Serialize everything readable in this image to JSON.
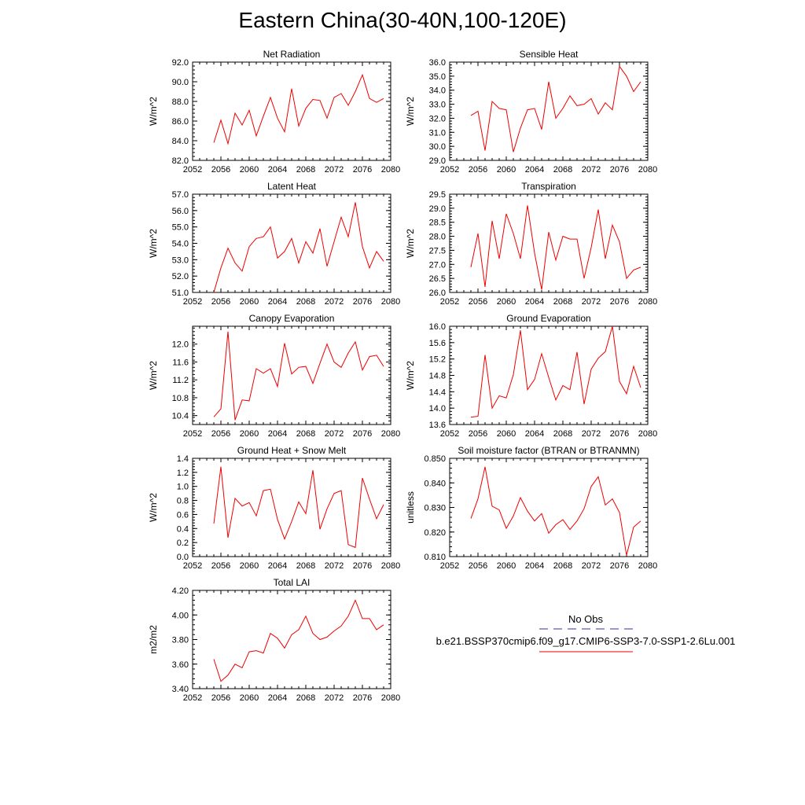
{
  "title": "Eastern China(30-40N,100-120E)",
  "colors": {
    "series": "#ee0000",
    "obs": "#3030a0",
    "axis": "#000000"
  },
  "legend": {
    "entries": [
      {
        "label": "No Obs",
        "style": "dashed",
        "color": "#3030a0"
      },
      {
        "label": "b.e21.BSSP370cmip6.f09_g17.CMIP6-SSP3-7.0-SSP1-2.6Lu.001",
        "style": "solid",
        "color": "#ee0000"
      }
    ]
  },
  "chart_data": [
    {
      "type": "line",
      "title": "Net Radiation",
      "ylabel": "W/m^2",
      "xlim": [
        2052,
        2080
      ],
      "xticks": [
        2052,
        2056,
        2060,
        2064,
        2068,
        2072,
        2076,
        2080
      ],
      "ylim": [
        82,
        92
      ],
      "yticks": [
        82,
        84,
        86,
        88,
        90,
        92
      ],
      "ydecimals": 1,
      "x": [
        2055,
        2056,
        2057,
        2058,
        2059,
        2060,
        2061,
        2062,
        2063,
        2064,
        2065,
        2066,
        2067,
        2068,
        2069,
        2070,
        2071,
        2072,
        2073,
        2074,
        2075,
        2076,
        2077,
        2078,
        2079
      ],
      "series": [
        {
          "values": [
            83.8,
            86.1,
            83.7,
            86.8,
            85.6,
            87.1,
            84.5,
            86.5,
            88.4,
            86.3,
            84.9,
            89.3,
            85.5,
            87.3,
            88.2,
            88.1,
            86.3,
            88.4,
            88.8,
            87.6,
            89.0,
            90.7,
            88.3,
            87.9,
            88.3
          ]
        }
      ]
    },
    {
      "type": "line",
      "title": "Sensible Heat",
      "ylabel": "W/m^2",
      "xlim": [
        2052,
        2080
      ],
      "xticks": [
        2052,
        2056,
        2060,
        2064,
        2068,
        2072,
        2076,
        2080
      ],
      "ylim": [
        29,
        36
      ],
      "yticks": [
        29,
        30,
        31,
        32,
        33,
        34,
        35,
        36
      ],
      "ydecimals": 1,
      "x": [
        2055,
        2056,
        2057,
        2058,
        2059,
        2060,
        2061,
        2062,
        2063,
        2064,
        2065,
        2066,
        2067,
        2068,
        2069,
        2070,
        2071,
        2072,
        2073,
        2074,
        2075,
        2076,
        2077,
        2078,
        2079
      ],
      "series": [
        {
          "values": [
            32.2,
            32.5,
            29.7,
            33.2,
            32.7,
            32.6,
            29.6,
            31.3,
            32.6,
            32.7,
            31.2,
            34.6,
            32.0,
            32.7,
            33.6,
            32.9,
            33.0,
            33.4,
            32.3,
            33.1,
            32.6,
            35.7,
            35.0,
            33.9,
            34.6
          ]
        }
      ]
    },
    {
      "type": "line",
      "title": "Latent Heat",
      "ylabel": "W/m^2",
      "xlim": [
        2052,
        2080
      ],
      "xticks": [
        2052,
        2056,
        2060,
        2064,
        2068,
        2072,
        2076,
        2080
      ],
      "ylim": [
        51,
        57
      ],
      "yticks": [
        51,
        52,
        53,
        54,
        55,
        56,
        57
      ],
      "ydecimals": 1,
      "x": [
        2055,
        2056,
        2057,
        2058,
        2059,
        2060,
        2061,
        2062,
        2063,
        2064,
        2065,
        2066,
        2067,
        2068,
        2069,
        2070,
        2071,
        2072,
        2073,
        2074,
        2075,
        2076,
        2077,
        2078,
        2079
      ],
      "series": [
        {
          "values": [
            51.0,
            52.5,
            53.7,
            52.8,
            52.3,
            53.8,
            54.3,
            54.4,
            55.0,
            53.1,
            53.5,
            54.3,
            52.8,
            54.1,
            53.4,
            54.9,
            52.6,
            54.1,
            55.6,
            54.4,
            56.5,
            53.8,
            52.5,
            53.5,
            52.9
          ]
        }
      ]
    },
    {
      "type": "line",
      "title": "Transpiration",
      "ylabel": "W/m^2",
      "xlim": [
        2052,
        2080
      ],
      "xticks": [
        2052,
        2056,
        2060,
        2064,
        2068,
        2072,
        2076,
        2080
      ],
      "ylim": [
        26,
        29.5
      ],
      "yticks": [
        26,
        26.5,
        27,
        27.5,
        28,
        28.5,
        29,
        29.5
      ],
      "ydecimals": 1,
      "x": [
        2055,
        2056,
        2057,
        2058,
        2059,
        2060,
        2061,
        2062,
        2063,
        2064,
        2065,
        2066,
        2067,
        2068,
        2069,
        2070,
        2071,
        2072,
        2073,
        2074,
        2075,
        2076,
        2077,
        2078,
        2079
      ],
      "series": [
        {
          "values": [
            26.9,
            28.1,
            26.2,
            28.55,
            27.2,
            28.8,
            28.1,
            27.2,
            29.1,
            27.4,
            26.1,
            28.15,
            27.15,
            28.0,
            27.9,
            27.9,
            26.5,
            27.6,
            28.95,
            27.2,
            28.4,
            27.8,
            26.5,
            26.8,
            26.9
          ]
        }
      ]
    },
    {
      "type": "line",
      "title": "Canopy Evaporation",
      "ylabel": "W/m^2",
      "xlim": [
        2052,
        2080
      ],
      "xticks": [
        2052,
        2056,
        2060,
        2064,
        2068,
        2072,
        2076,
        2080
      ],
      "ylim": [
        10.2,
        12.4
      ],
      "yticks": [
        10.4,
        10.8,
        11.2,
        11.6,
        12.0
      ],
      "ydecimals": 1,
      "x": [
        2055,
        2056,
        2057,
        2058,
        2059,
        2060,
        2061,
        2062,
        2063,
        2064,
        2065,
        2066,
        2067,
        2068,
        2069,
        2070,
        2071,
        2072,
        2073,
        2074,
        2075,
        2076,
        2077,
        2078,
        2079
      ],
      "series": [
        {
          "values": [
            10.37,
            10.55,
            12.28,
            10.3,
            10.75,
            10.73,
            11.45,
            11.35,
            11.45,
            11.05,
            12.02,
            11.33,
            11.48,
            11.5,
            11.12,
            11.57,
            12.0,
            11.6,
            11.48,
            11.8,
            12.05,
            11.42,
            11.72,
            11.75,
            11.5
          ]
        }
      ]
    },
    {
      "type": "line",
      "title": "Ground Evaporation",
      "ylabel": "W/m^2",
      "xlim": [
        2052,
        2080
      ],
      "xticks": [
        2052,
        2056,
        2060,
        2064,
        2068,
        2072,
        2076,
        2080
      ],
      "ylim": [
        13.6,
        16.0
      ],
      "yticks": [
        13.6,
        14.0,
        14.4,
        14.8,
        15.2,
        15.6,
        16.0
      ],
      "ydecimals": 1,
      "x": [
        2055,
        2056,
        2057,
        2058,
        2059,
        2060,
        2061,
        2062,
        2063,
        2064,
        2065,
        2066,
        2067,
        2068,
        2069,
        2070,
        2071,
        2072,
        2073,
        2074,
        2075,
        2076,
        2077,
        2078,
        2079
      ],
      "series": [
        {
          "values": [
            13.78,
            13.8,
            15.3,
            14.0,
            14.3,
            14.25,
            14.82,
            15.9,
            14.45,
            14.7,
            15.33,
            14.75,
            14.2,
            14.55,
            14.45,
            15.37,
            14.1,
            14.95,
            15.22,
            15.38,
            16.0,
            14.65,
            14.35,
            15.02,
            14.5
          ]
        }
      ]
    },
    {
      "type": "line",
      "title": "Ground Heat + Snow Melt",
      "ylabel": "W/m^2",
      "xlim": [
        2052,
        2080
      ],
      "xticks": [
        2052,
        2056,
        2060,
        2064,
        2068,
        2072,
        2076,
        2080
      ],
      "ylim": [
        0,
        1.4
      ],
      "yticks": [
        0,
        0.2,
        0.4,
        0.6,
        0.8,
        1.0,
        1.2,
        1.4
      ],
      "ydecimals": 1,
      "x": [
        2055,
        2056,
        2057,
        2058,
        2059,
        2060,
        2061,
        2062,
        2063,
        2064,
        2065,
        2066,
        2067,
        2068,
        2069,
        2070,
        2071,
        2072,
        2073,
        2074,
        2075,
        2076,
        2077,
        2078,
        2079
      ],
      "series": [
        {
          "values": [
            0.47,
            1.28,
            0.27,
            0.83,
            0.72,
            0.77,
            0.58,
            0.94,
            0.96,
            0.53,
            0.25,
            0.5,
            0.78,
            0.61,
            1.23,
            0.39,
            0.68,
            0.9,
            0.94,
            0.17,
            0.13,
            1.12,
            0.82,
            0.54,
            0.74
          ]
        }
      ]
    },
    {
      "type": "line",
      "title": "Soil moisture factor (BTRAN or BTRANMN)",
      "ylabel": "unitless",
      "xlim": [
        2052,
        2080
      ],
      "xticks": [
        2052,
        2056,
        2060,
        2064,
        2068,
        2072,
        2076,
        2080
      ],
      "ylim": [
        0.81,
        0.85
      ],
      "yticks": [
        0.81,
        0.82,
        0.83,
        0.84,
        0.85
      ],
      "ydecimals": 3,
      "x": [
        2055,
        2056,
        2057,
        2058,
        2059,
        2060,
        2061,
        2062,
        2063,
        2064,
        2065,
        2066,
        2067,
        2068,
        2069,
        2070,
        2071,
        2072,
        2073,
        2074,
        2075,
        2076,
        2077,
        2078,
        2079
      ],
      "series": [
        {
          "values": [
            0.8255,
            0.8335,
            0.8465,
            0.8305,
            0.829,
            0.8215,
            0.8265,
            0.834,
            0.8285,
            0.8245,
            0.8275,
            0.8195,
            0.823,
            0.825,
            0.821,
            0.8245,
            0.8295,
            0.8385,
            0.8425,
            0.831,
            0.8335,
            0.828,
            0.8105,
            0.822,
            0.8245
          ]
        }
      ]
    },
    {
      "type": "line",
      "title": "Total LAI",
      "ylabel": "m2/m2",
      "xlim": [
        2052,
        2080
      ],
      "xticks": [
        2052,
        2056,
        2060,
        2064,
        2068,
        2072,
        2076,
        2080
      ],
      "ylim": [
        3.4,
        4.2
      ],
      "yticks": [
        3.4,
        3.6,
        3.8,
        4.0,
        4.2
      ],
      "ydecimals": 2,
      "x": [
        2055,
        2056,
        2057,
        2058,
        2059,
        2060,
        2061,
        2062,
        2063,
        2064,
        2065,
        2066,
        2067,
        2068,
        2069,
        2070,
        2071,
        2072,
        2073,
        2074,
        2075,
        2076,
        2077,
        2078,
        2079
      ],
      "series": [
        {
          "values": [
            3.64,
            3.46,
            3.51,
            3.6,
            3.57,
            3.7,
            3.71,
            3.69,
            3.85,
            3.81,
            3.73,
            3.84,
            3.88,
            3.99,
            3.85,
            3.8,
            3.82,
            3.87,
            3.91,
            3.99,
            4.12,
            3.97,
            3.97,
            3.88,
            3.92
          ]
        }
      ]
    }
  ]
}
